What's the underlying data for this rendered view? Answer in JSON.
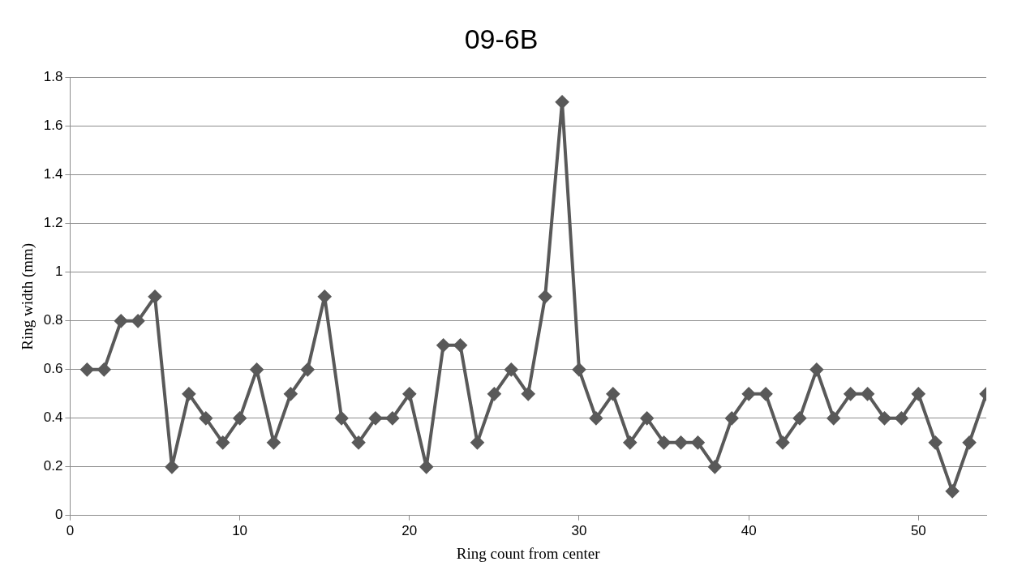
{
  "chart_data": {
    "type": "line",
    "title": "09-6B",
    "xlabel": "Ring count from center",
    "ylabel": "Ring width (mm)",
    "x": [
      1,
      2,
      3,
      4,
      5,
      6,
      7,
      8,
      9,
      10,
      11,
      12,
      13,
      14,
      15,
      16,
      17,
      18,
      19,
      20,
      21,
      22,
      23,
      24,
      25,
      26,
      27,
      28,
      29,
      30,
      31,
      32,
      33,
      34,
      35,
      36,
      37,
      38,
      39,
      40,
      41,
      42,
      43,
      44,
      45,
      46,
      47,
      48,
      49,
      50,
      51,
      52,
      53,
      54
    ],
    "series": [
      {
        "color": "#595959",
        "values": [
          0.6,
          0.6,
          0.8,
          0.8,
          0.9,
          0.2,
          0.5,
          0.4,
          0.3,
          0.4,
          0.6,
          0.3,
          0.5,
          0.6,
          0.9,
          0.4,
          0.3,
          0.4,
          0.4,
          0.5,
          0.2,
          0.7,
          0.7,
          0.3,
          0.5,
          0.6,
          0.5,
          0.9,
          1.7,
          0.6,
          0.4,
          0.5,
          0.3,
          0.4,
          0.3,
          0.3,
          0.3,
          0.2,
          0.4,
          0.5,
          0.5,
          0.3,
          0.4,
          0.6,
          0.4,
          0.5,
          0.5,
          0.4,
          0.4,
          0.5,
          0.3,
          0.1,
          0.3,
          0.5
        ]
      }
    ],
    "xlim": [
      0,
      54
    ],
    "xticks": [
      0,
      10,
      20,
      30,
      40,
      50
    ],
    "ylim": [
      0,
      1.8
    ],
    "yticks": [
      0,
      0.2,
      0.4,
      0.6,
      0.8,
      1,
      1.2,
      1.4,
      1.6,
      1.8
    ],
    "grid": "y",
    "legend": false,
    "marker": "diamond",
    "line_style": "solid"
  }
}
